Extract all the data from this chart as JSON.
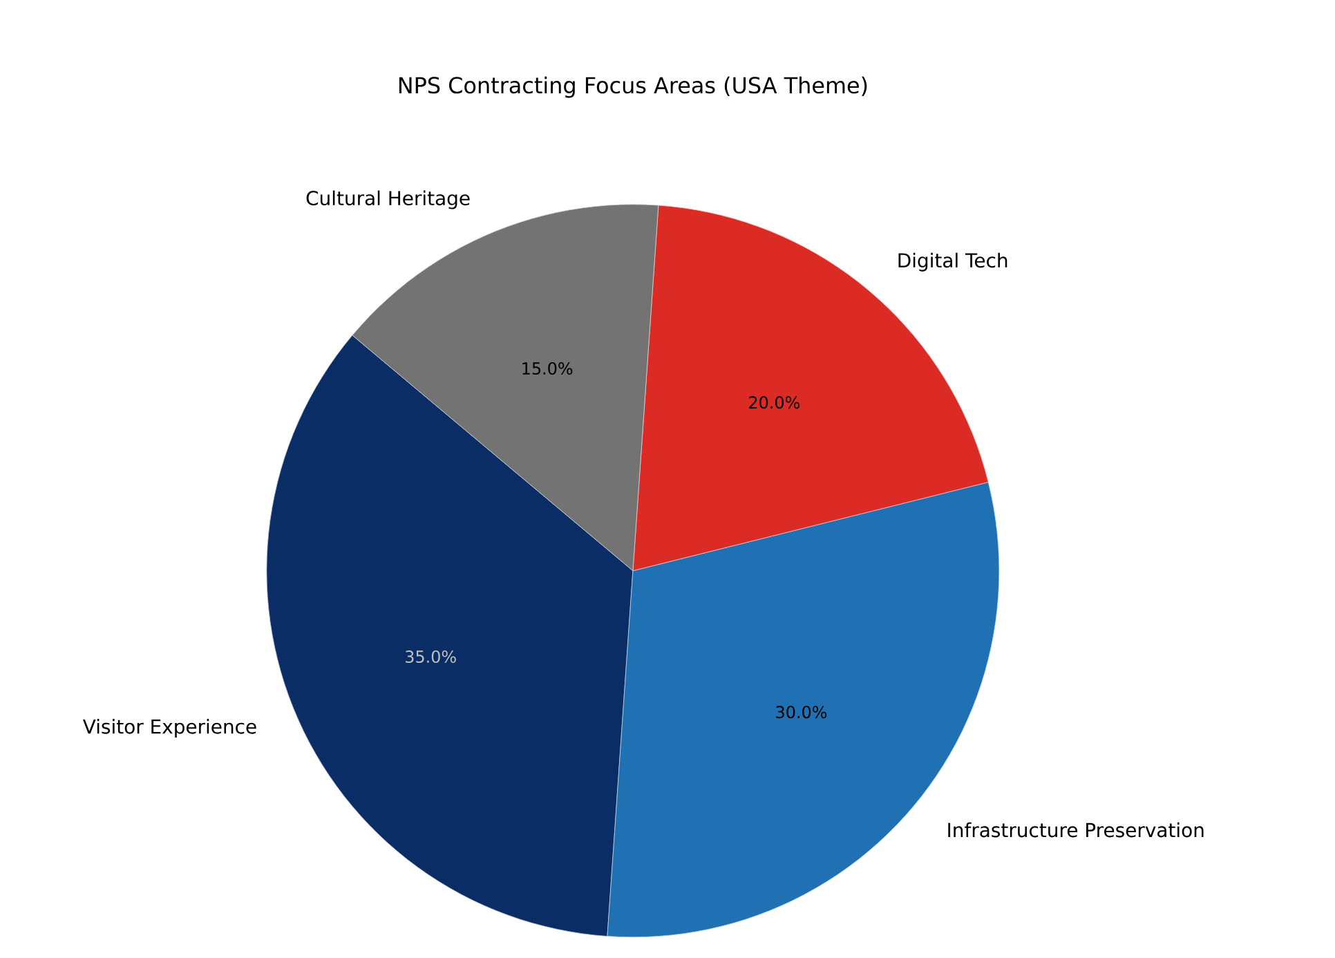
{
  "chart_data": {
    "type": "pie",
    "title": "NPS Contracting Focus Areas (USA Theme)",
    "categories": [
      "Visitor Experience",
      "Infrastructure Preservation",
      "Digital Tech",
      "Cultural Heritage"
    ],
    "values": [
      35,
      30,
      20,
      15
    ],
    "colors": [
      "#0a2d66",
      "#2070b4",
      "#dc2b25",
      "#737373"
    ],
    "value_labels": [
      "35.0%",
      "30.0%",
      "20.0%",
      "15.0%"
    ]
  }
}
